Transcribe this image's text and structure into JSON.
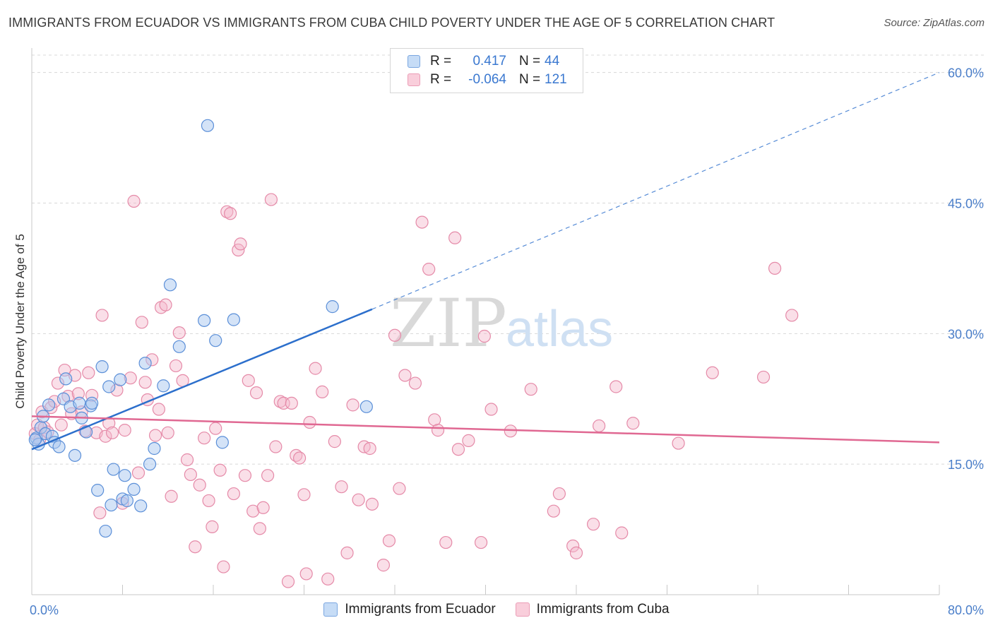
{
  "title": "IMMIGRANTS FROM ECUADOR VS IMMIGRANTS FROM CUBA CHILD POVERTY UNDER THE AGE OF 5 CORRELATION CHART",
  "source": "Source: ZipAtlas.com",
  "watermark": {
    "zip": "ZIP",
    "atlas": "atlas"
  },
  "colors": {
    "ecuador_fill": "#a9c8ef",
    "ecuador_stroke": "#5b8fd8",
    "ecuador_line": "#2c6fcc",
    "cuba_fill": "#f5b8cb",
    "cuba_stroke": "#e58aa8",
    "cuba_line": "#e06892",
    "tick_label": "#4a7ec9",
    "grid": "#d8d8d8"
  },
  "legend": {
    "rows": [
      {
        "r_label": "R =",
        "r_value": "0.417",
        "n_label": "N =",
        "n_value": "44"
      },
      {
        "r_label": "R =",
        "r_value": "-0.064",
        "n_label": "N =",
        "n_value": "121"
      }
    ]
  },
  "bottom_legend": [
    "Immigrants from Ecuador",
    "Immigrants from Cuba"
  ],
  "chart_data": {
    "type": "scatter",
    "title": "IMMIGRANTS FROM ECUADOR VS IMMIGRANTS FROM CUBA CHILD POVERTY UNDER THE AGE OF 5 CORRELATION CHART",
    "xlabel": "",
    "ylabel": "Child Poverty Under the Age of 5",
    "xlim": [
      0,
      80
    ],
    "ylim": [
      0,
      62
    ],
    "x_tick_labels": [
      "0.0%",
      "80.0%"
    ],
    "y_ticks": [
      15,
      30,
      45,
      60
    ],
    "y_tick_labels": [
      "15.0%",
      "30.0%",
      "45.0%",
      "60.0%"
    ],
    "grid": true,
    "legend_position": "top-center",
    "series": [
      {
        "name": "Immigrants from Ecuador",
        "trend": {
          "x": [
            0,
            30
          ],
          "y": [
            16.7,
            32.8
          ],
          "extended_to": [
            80,
            60.0
          ]
        },
        "points": [
          [
            0.4,
            18.0
          ],
          [
            0.6,
            17.3
          ],
          [
            0.8,
            19.2
          ],
          [
            1.0,
            20.5
          ],
          [
            1.2,
            18.5
          ],
          [
            1.5,
            21.8
          ],
          [
            1.8,
            18.2
          ],
          [
            2.0,
            17.5
          ],
          [
            2.4,
            17.0
          ],
          [
            2.8,
            22.5
          ],
          [
            3.0,
            24.8
          ],
          [
            3.4,
            21.6
          ],
          [
            3.8,
            16.0
          ],
          [
            4.2,
            22.0
          ],
          [
            4.4,
            20.3
          ],
          [
            4.8,
            18.7
          ],
          [
            5.2,
            21.7
          ],
          [
            5.3,
            22.0
          ],
          [
            5.8,
            12.0
          ],
          [
            6.2,
            26.2
          ],
          [
            6.5,
            7.3
          ],
          [
            6.8,
            23.9
          ],
          [
            7.0,
            10.3
          ],
          [
            7.2,
            14.4
          ],
          [
            7.8,
            24.7
          ],
          [
            8.0,
            11.0
          ],
          [
            8.2,
            13.7
          ],
          [
            8.4,
            10.8
          ],
          [
            9.0,
            12.1
          ],
          [
            9.6,
            10.2
          ],
          [
            10.0,
            26.6
          ],
          [
            10.4,
            15.0
          ],
          [
            10.8,
            16.8
          ],
          [
            11.6,
            24.0
          ],
          [
            12.2,
            35.6
          ],
          [
            13.0,
            28.5
          ],
          [
            15.2,
            31.5
          ],
          [
            15.5,
            53.9
          ],
          [
            16.2,
            29.2
          ],
          [
            16.8,
            17.5
          ],
          [
            17.8,
            31.6
          ],
          [
            26.5,
            33.1
          ],
          [
            29.5,
            21.6
          ],
          [
            0.3,
            17.8
          ]
        ]
      },
      {
        "name": "Immigrants from Cuba",
        "trend": {
          "x": [
            0,
            80
          ],
          "y": [
            20.5,
            17.5
          ]
        },
        "points": [
          [
            0.3,
            18.5
          ],
          [
            0.5,
            19.5
          ],
          [
            0.7,
            17.8
          ],
          [
            0.9,
            21.0
          ],
          [
            1.1,
            19.2
          ],
          [
            1.4,
            18.7
          ],
          [
            1.7,
            21.5
          ],
          [
            2.0,
            22.2
          ],
          [
            2.3,
            24.3
          ],
          [
            2.6,
            19.5
          ],
          [
            2.9,
            25.8
          ],
          [
            3.2,
            22.8
          ],
          [
            3.5,
            20.8
          ],
          [
            3.8,
            25.2
          ],
          [
            4.1,
            23.1
          ],
          [
            4.4,
            21.0
          ],
          [
            4.7,
            18.8
          ],
          [
            5.0,
            25.5
          ],
          [
            5.3,
            22.9
          ],
          [
            5.7,
            18.6
          ],
          [
            6.0,
            9.4
          ],
          [
            6.2,
            32.1
          ],
          [
            6.5,
            18.2
          ],
          [
            6.8,
            19.7
          ],
          [
            7.1,
            18.6
          ],
          [
            7.5,
            23.5
          ],
          [
            8.0,
            10.5
          ],
          [
            8.2,
            18.9
          ],
          [
            8.7,
            24.9
          ],
          [
            9.0,
            45.2
          ],
          [
            9.4,
            14.0
          ],
          [
            9.7,
            31.3
          ],
          [
            10.0,
            24.4
          ],
          [
            10.2,
            22.4
          ],
          [
            10.6,
            27.0
          ],
          [
            10.9,
            18.3
          ],
          [
            11.2,
            21.3
          ],
          [
            11.4,
            33.0
          ],
          [
            11.8,
            33.3
          ],
          [
            12.0,
            18.6
          ],
          [
            12.3,
            11.3
          ],
          [
            12.7,
            26.3
          ],
          [
            13.0,
            30.1
          ],
          [
            13.3,
            24.6
          ],
          [
            13.7,
            15.5
          ],
          [
            14.0,
            13.8
          ],
          [
            14.4,
            5.5
          ],
          [
            14.8,
            12.6
          ],
          [
            15.2,
            18.0
          ],
          [
            15.6,
            10.8
          ],
          [
            15.9,
            7.8
          ],
          [
            16.2,
            19.1
          ],
          [
            16.6,
            14.3
          ],
          [
            16.9,
            3.2
          ],
          [
            17.2,
            44.0
          ],
          [
            17.5,
            43.8
          ],
          [
            17.8,
            11.6
          ],
          [
            18.2,
            39.6
          ],
          [
            18.4,
            40.3
          ],
          [
            18.8,
            13.7
          ],
          [
            19.1,
            24.6
          ],
          [
            19.5,
            9.6
          ],
          [
            19.8,
            23.2
          ],
          [
            20.1,
            7.6
          ],
          [
            20.4,
            10.0
          ],
          [
            20.8,
            13.7
          ],
          [
            21.1,
            45.4
          ],
          [
            21.5,
            17.0
          ],
          [
            21.9,
            22.2
          ],
          [
            22.2,
            22.0
          ],
          [
            22.6,
            1.5
          ],
          [
            22.9,
            22.0
          ],
          [
            23.3,
            16.0
          ],
          [
            23.6,
            15.7
          ],
          [
            24.0,
            11.5
          ],
          [
            24.2,
            2.4
          ],
          [
            24.5,
            19.8
          ],
          [
            25.0,
            26.0
          ],
          [
            25.6,
            23.3
          ],
          [
            26.1,
            1.8
          ],
          [
            26.7,
            17.6
          ],
          [
            27.3,
            12.4
          ],
          [
            27.8,
            4.8
          ],
          [
            28.3,
            21.8
          ],
          [
            28.8,
            10.9
          ],
          [
            29.3,
            17.0
          ],
          [
            29.8,
            16.8
          ],
          [
            30.0,
            10.4
          ],
          [
            31.0,
            3.4
          ],
          [
            31.5,
            6.2
          ],
          [
            32.0,
            29.8
          ],
          [
            32.4,
            12.2
          ],
          [
            32.9,
            25.2
          ],
          [
            33.8,
            24.3
          ],
          [
            34.4,
            42.8
          ],
          [
            35.0,
            37.4
          ],
          [
            35.5,
            20.1
          ],
          [
            35.8,
            18.9
          ],
          [
            36.5,
            6.0
          ],
          [
            37.3,
            41.0
          ],
          [
            37.6,
            16.7
          ],
          [
            38.5,
            17.7
          ],
          [
            39.6,
            6.0
          ],
          [
            39.9,
            29.7
          ],
          [
            40.5,
            21.3
          ],
          [
            42.2,
            18.8
          ],
          [
            44.0,
            23.6
          ],
          [
            46.0,
            9.6
          ],
          [
            46.5,
            11.6
          ],
          [
            47.7,
            5.6
          ],
          [
            48.0,
            4.8
          ],
          [
            49.5,
            8.1
          ],
          [
            50.0,
            19.4
          ],
          [
            51.5,
            23.9
          ],
          [
            52.0,
            7.1
          ],
          [
            53.0,
            19.7
          ],
          [
            57.0,
            17.4
          ],
          [
            60.0,
            25.5
          ],
          [
            64.5,
            25.0
          ],
          [
            65.5,
            37.5
          ],
          [
            67.0,
            32.1
          ]
        ]
      }
    ]
  }
}
